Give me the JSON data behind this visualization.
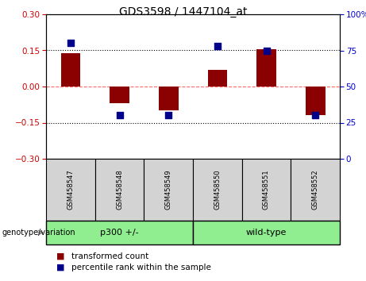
{
  "title": "GDS3598 / 1447104_at",
  "samples": [
    "GSM458547",
    "GSM458548",
    "GSM458549",
    "GSM458550",
    "GSM458551",
    "GSM458552"
  ],
  "red_values": [
    0.14,
    -0.07,
    -0.1,
    0.07,
    0.155,
    -0.12
  ],
  "blue_values": [
    80,
    30,
    30,
    78,
    75,
    30
  ],
  "ylim_left": [
    -0.3,
    0.3
  ],
  "ylim_right": [
    0,
    100
  ],
  "yticks_left": [
    -0.3,
    -0.15,
    0,
    0.15,
    0.3
  ],
  "yticks_right": [
    0,
    25,
    50,
    75,
    100
  ],
  "bar_color": "#8B0000",
  "dot_color": "#00008B",
  "bar_width": 0.4,
  "dot_size": 40,
  "legend_red": "transformed count",
  "legend_blue": "percentile rank within the sample",
  "group_label": "genotype/variation",
  "background_color": "#ffffff",
  "plot_bg_color": "#ffffff",
  "zero_line_color": "#FF6666",
  "dotted_line_color": "#000000",
  "title_fontsize": 10,
  "tick_fontsize": 7.5,
  "label_fontsize": 8,
  "green_color": "#90EE90",
  "gray_color": "#D3D3D3",
  "groups": [
    {
      "label": "p300 +/-",
      "start": 0,
      "end": 3
    },
    {
      "label": "wild-type",
      "start": 3,
      "end": 6
    }
  ]
}
